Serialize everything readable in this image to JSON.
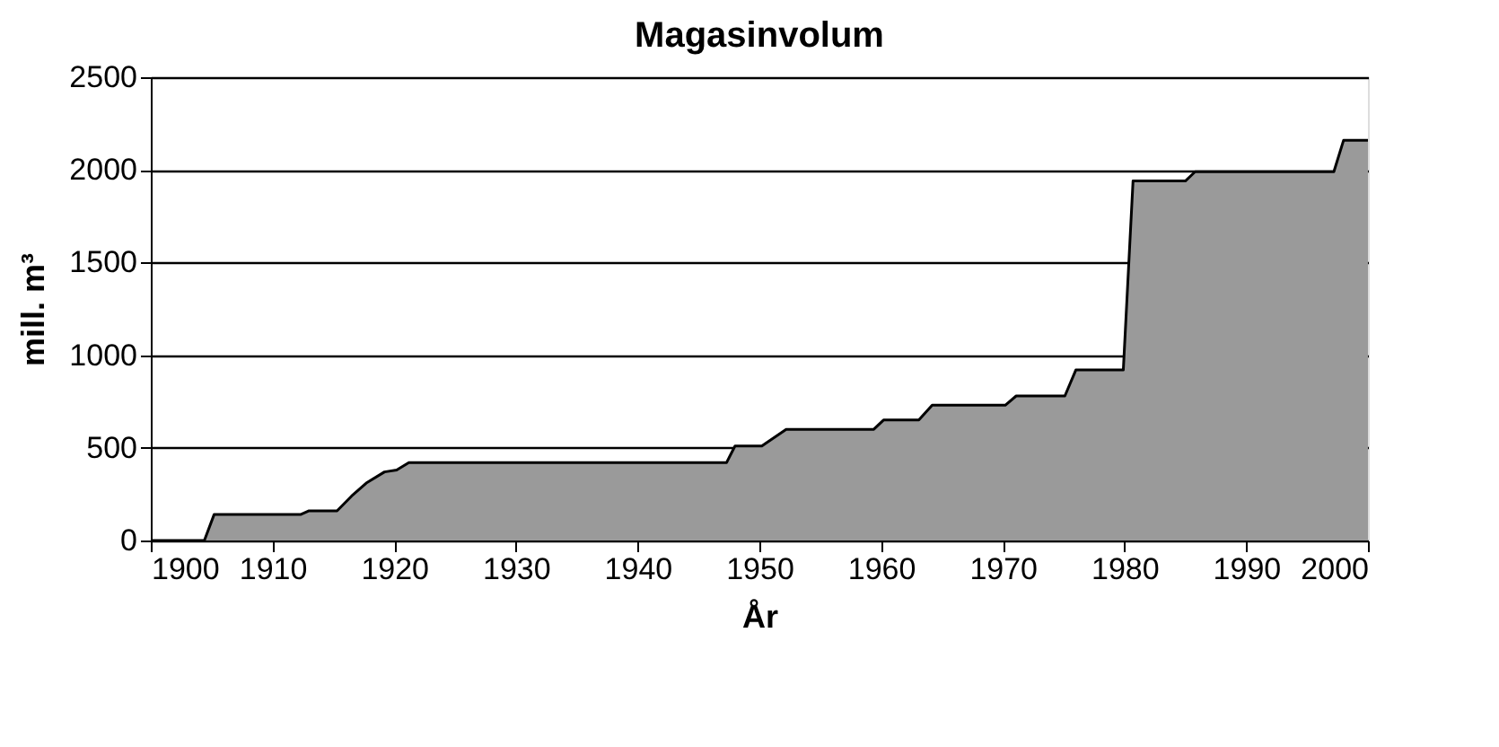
{
  "chart_data": {
    "type": "area",
    "title": "Magasinvolum",
    "xlabel": "År",
    "ylabel": "mill. m³",
    "x": [
      1900,
      1904.4,
      1905.2,
      1912.3,
      1913,
      1915.3,
      1916.5,
      1917.7,
      1919.2,
      1920.2,
      1921.2,
      1947.3,
      1948,
      1950.2,
      1952.2,
      1959.4,
      1960.2,
      1963.1,
      1964.2,
      1970.2,
      1971.1,
      1975.1,
      1976,
      1979.9,
      1980.7,
      1985,
      1985.8,
      1997.2,
      1998,
      2000
    ],
    "series": [
      {
        "color": "#9a9a9a",
        "values": [
          0,
          0,
          140,
          140,
          160,
          160,
          240,
          310,
          370,
          380,
          420,
          420,
          510,
          510,
          600,
          600,
          650,
          650,
          730,
          730,
          780,
          780,
          920,
          920,
          1940,
          1940,
          1990,
          1990,
          2160,
          2160
        ]
      }
    ],
    "xlim": [
      1900,
      2000
    ],
    "xticks": [
      1900,
      1910,
      1920,
      1930,
      1940,
      1950,
      1960,
      1970,
      1980,
      1990,
      2000
    ],
    "ylim": [
      0,
      2500
    ],
    "yticks": [
      0,
      500,
      1000,
      1500,
      2000,
      2500
    ],
    "grid": "y"
  }
}
